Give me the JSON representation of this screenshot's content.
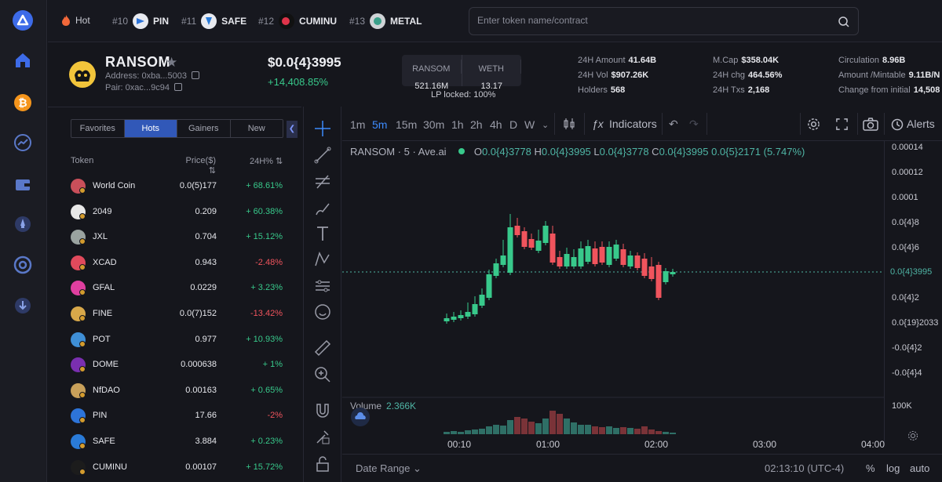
{
  "colors": {
    "up": "#38c98b",
    "down": "#f0545d",
    "accent": "#3d8bfd",
    "tab_active": "#3158b8"
  },
  "sidebar": {
    "icons": [
      "logo-icon",
      "home-icon",
      "bitcoin-icon",
      "trending-icon",
      "wallet-icon",
      "rocket-icon",
      "target-icon",
      "download-icon"
    ]
  },
  "topbar": {
    "hot_label": "Hot",
    "tickers": [
      {
        "rank": "#10",
        "symbol": "PIN"
      },
      {
        "rank": "#11",
        "symbol": "SAFE"
      },
      {
        "rank": "#12",
        "symbol": "CUMINU"
      },
      {
        "rank": "#13",
        "symbol": "METAL"
      }
    ],
    "search_placeholder": "Enter token name/contract"
  },
  "token": {
    "name": "RANSOM",
    "address": "Address: 0xba...5003",
    "pair": "Pair: 0xac...9c94",
    "price": "$0.0{4}3995",
    "change": "+14,408.85%",
    "liquidity": [
      {
        "label": "RANSOM",
        "value": "521.16M"
      },
      {
        "label": "WETH",
        "value": "13.17"
      }
    ],
    "lp_locked": "LP locked: 100%",
    "stats": {
      "amount_24h": {
        "label": "24H Amount",
        "value": "41.64B"
      },
      "vol_24h": {
        "label": "24H Vol",
        "value": "$907.26K"
      },
      "holders": {
        "label": "Holders",
        "value": "568"
      },
      "mcap": {
        "label": "M.Cap",
        "value": "$358.04K"
      },
      "chg_24h": {
        "label": "24H chg",
        "value": "464.56%"
      },
      "txs_24h": {
        "label": "24H Txs",
        "value": "2,168"
      },
      "circulation": {
        "label": "Circulation",
        "value": "8.96B"
      },
      "amount_mintable": {
        "label": "Amount /Mintable",
        "value": "9.11B/N"
      },
      "change_initial": {
        "label": "Change from initial",
        "value": "14,508"
      }
    }
  },
  "list": {
    "tabs": [
      "Favorites",
      "Hots",
      "Gainers",
      "New"
    ],
    "active_tab": "Hots",
    "headers": {
      "token": "Token",
      "price": "Price($)",
      "change": "24H%"
    },
    "rows": [
      {
        "name": "World Coin",
        "price": "0.0(5)177",
        "change": "+ 68.61%",
        "dir": "up",
        "color": "#c94f5a"
      },
      {
        "name": "2049",
        "price": "0.209",
        "change": "+ 60.38%",
        "dir": "up",
        "color": "#e8e8e8"
      },
      {
        "name": "JXL",
        "price": "0.704",
        "change": "+ 15.12%",
        "dir": "up",
        "color": "#9aa3a0"
      },
      {
        "name": "XCAD",
        "price": "0.943",
        "change": "-2.48%",
        "dir": "down",
        "color": "#e14a5c"
      },
      {
        "name": "GFAL",
        "price": "0.0229",
        "change": "+ 3.23%",
        "dir": "up",
        "color": "#e03fa0"
      },
      {
        "name": "FINE",
        "price": "0.0(7)152",
        "change": "-13.42%",
        "dir": "down",
        "color": "#d8a84a"
      },
      {
        "name": "POT",
        "price": "0.977",
        "change": "+ 10.93%",
        "dir": "up",
        "color": "#3f8fd6"
      },
      {
        "name": "DOME",
        "price": "0.000638",
        "change": "+ 1%",
        "dir": "up",
        "color": "#7a2fb0"
      },
      {
        "name": "NfDAO",
        "price": "0.00163",
        "change": "+ 0.65%",
        "dir": "up",
        "color": "#c8a05a"
      },
      {
        "name": "PIN",
        "price": "17.66",
        "change": "-2%",
        "dir": "down",
        "color": "#2d74d9"
      },
      {
        "name": "SAFE",
        "price": "3.884",
        "change": "+ 0.23%",
        "dir": "up",
        "color": "#2a7bd8"
      },
      {
        "name": "CUMINU",
        "price": "0.00107",
        "change": "+ 15.72%",
        "dir": "up",
        "color": "#1c1c1c"
      }
    ]
  },
  "chart": {
    "intervals": [
      "1m",
      "5m",
      "15m",
      "30m",
      "1h",
      "2h",
      "4h",
      "D",
      "W"
    ],
    "active_interval": "5m",
    "indicators_label": "Indicators",
    "alerts_label": "Alerts",
    "legend": {
      "symbol": "RANSOM · 5 · Ave.ai",
      "o": "0.0{4}3778",
      "h": "0.0{4}3995",
      "l": "0.0{4}3778",
      "c": "0.0{4}3995",
      "chg": "0.0{5}2171 (5.747%)"
    },
    "volume_label": "Volume",
    "volume_value": "2.366K",
    "y_ticks": [
      "0.00014",
      "0.00012",
      "0.0001",
      "0.0{4}8",
      "0.0{4}6",
      "0.0{4}2",
      "0.0{19}2033",
      "-0.0{4}2",
      "-0.0{4}4"
    ],
    "current_price_tag": "0.0{4}3995",
    "vol_tick": "100K",
    "x_ticks": [
      "00:10",
      "01:00",
      "02:00",
      "03:00",
      "04:00"
    ],
    "date_range": "Date Range",
    "time": "02:13:10 (UTC-4)",
    "scale_buttons": [
      "%",
      "log",
      "auto"
    ]
  }
}
